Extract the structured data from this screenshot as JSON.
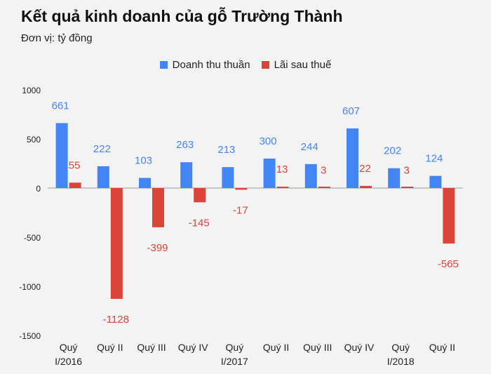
{
  "title": "Kết quả kinh doanh của gỗ Trường Thành",
  "subtitle": "Đơn vị: tỷ đồng",
  "colors": {
    "revenue": "#4285f4",
    "profit": "#db4437",
    "background": "#f3f3f3",
    "grid": "#999999"
  },
  "chart_data": {
    "type": "bar",
    "title": "Kết quả kinh doanh của gỗ Trường Thành",
    "subtitle": "Đơn vị: tỷ đồng",
    "categories": [
      [
        "Quý",
        "I/2016"
      ],
      [
        "Quý II"
      ],
      [
        "Quý III"
      ],
      [
        "Quý IV"
      ],
      [
        "Quý",
        "I/2017"
      ],
      [
        "Quý II"
      ],
      [
        "Quý III"
      ],
      [
        "Quý IV"
      ],
      [
        "Quý",
        "I/2018"
      ],
      [
        "Quý II"
      ]
    ],
    "series": [
      {
        "name": "Doanh thu thuần",
        "color": "#4285f4",
        "values": [
          661,
          222,
          103,
          263,
          213,
          300,
          244,
          607,
          202,
          124
        ]
      },
      {
        "name": "Lãi sau thuế",
        "color": "#db4437",
        "values": [
          55,
          -1128,
          -399,
          -145,
          -17,
          13,
          3,
          22,
          3,
          -565
        ]
      }
    ],
    "yticks": [
      1000,
      500,
      0,
      -500,
      -1000,
      -1500
    ],
    "ytick_labels": [
      "1000",
      "500",
      "0",
      "-500",
      "-1000",
      "-1500"
    ],
    "ylim": [
      -1500,
      1000
    ],
    "legend_position": "top-center",
    "grid": false,
    "data_labels": true
  }
}
